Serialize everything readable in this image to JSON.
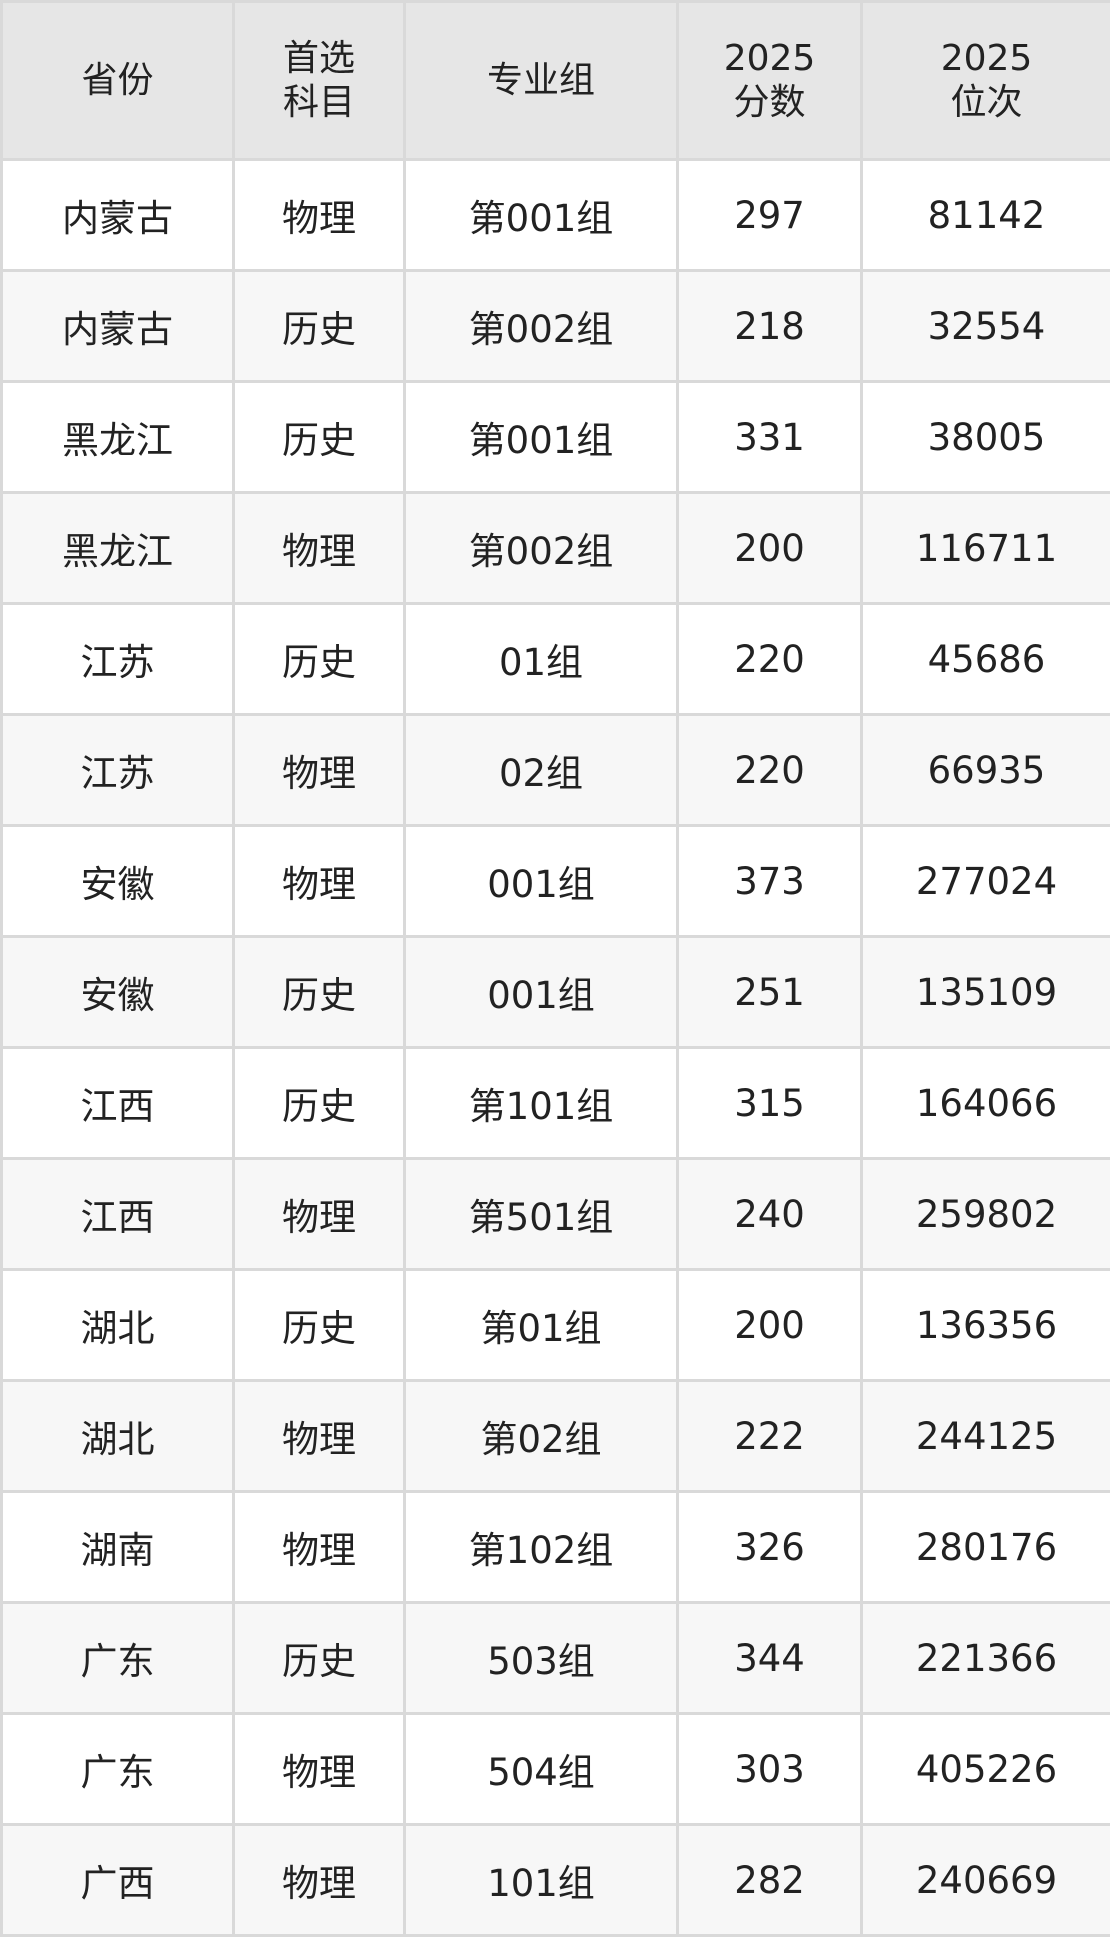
{
  "headers": [
    {
      "lines": [
        "省份"
      ]
    },
    {
      "lines": [
        "首选",
        "科目"
      ]
    },
    {
      "lines": [
        "专业组"
      ]
    },
    {
      "lines": [
        "2025",
        "分数"
      ]
    },
    {
      "lines": [
        "2025",
        "位次"
      ]
    }
  ],
  "rows": [
    [
      "内蒙古",
      "物理",
      "第001组",
      "297",
      "81142"
    ],
    [
      "内蒙古",
      "历史",
      "第002组",
      "218",
      "32554"
    ],
    [
      "黑龙江",
      "历史",
      "第001组",
      "331",
      "38005"
    ],
    [
      "黑龙江",
      "物理",
      "第002组",
      "200",
      "116711"
    ],
    [
      "江苏",
      "历史",
      "01组",
      "220",
      "45686"
    ],
    [
      "江苏",
      "物理",
      "02组",
      "220",
      "66935"
    ],
    [
      "安徽",
      "物理",
      "001组",
      "373",
      "277024"
    ],
    [
      "安徽",
      "历史",
      "001组",
      "251",
      "135109"
    ],
    [
      "江西",
      "历史",
      "第101组",
      "315",
      "164066"
    ],
    [
      "江西",
      "物理",
      "第501组",
      "240",
      "259802"
    ],
    [
      "湖北",
      "历史",
      "第01组",
      "200",
      "136356"
    ],
    [
      "湖北",
      "物理",
      "第02组",
      "222",
      "244125"
    ],
    [
      "湖南",
      "物理",
      "第102组",
      "326",
      "280176"
    ],
    [
      "广东",
      "历史",
      "503组",
      "344",
      "221366"
    ],
    [
      "广东",
      "物理",
      "504组",
      "303",
      "405226"
    ],
    [
      "广西",
      "物理",
      "101组",
      "282",
      "240669"
    ]
  ]
}
